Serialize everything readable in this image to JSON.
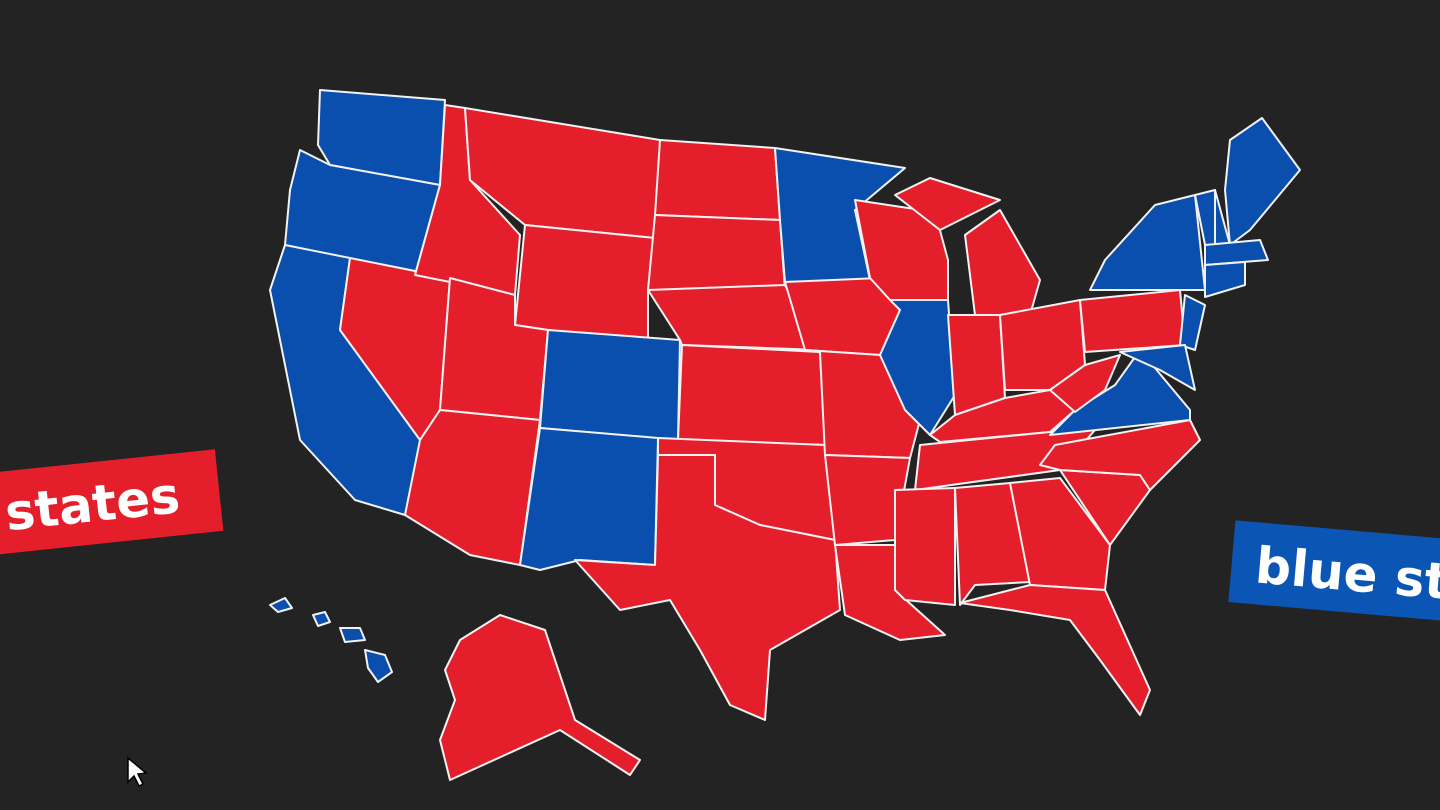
{
  "labels": {
    "red": "red states",
    "blue": "blue states"
  }
}
